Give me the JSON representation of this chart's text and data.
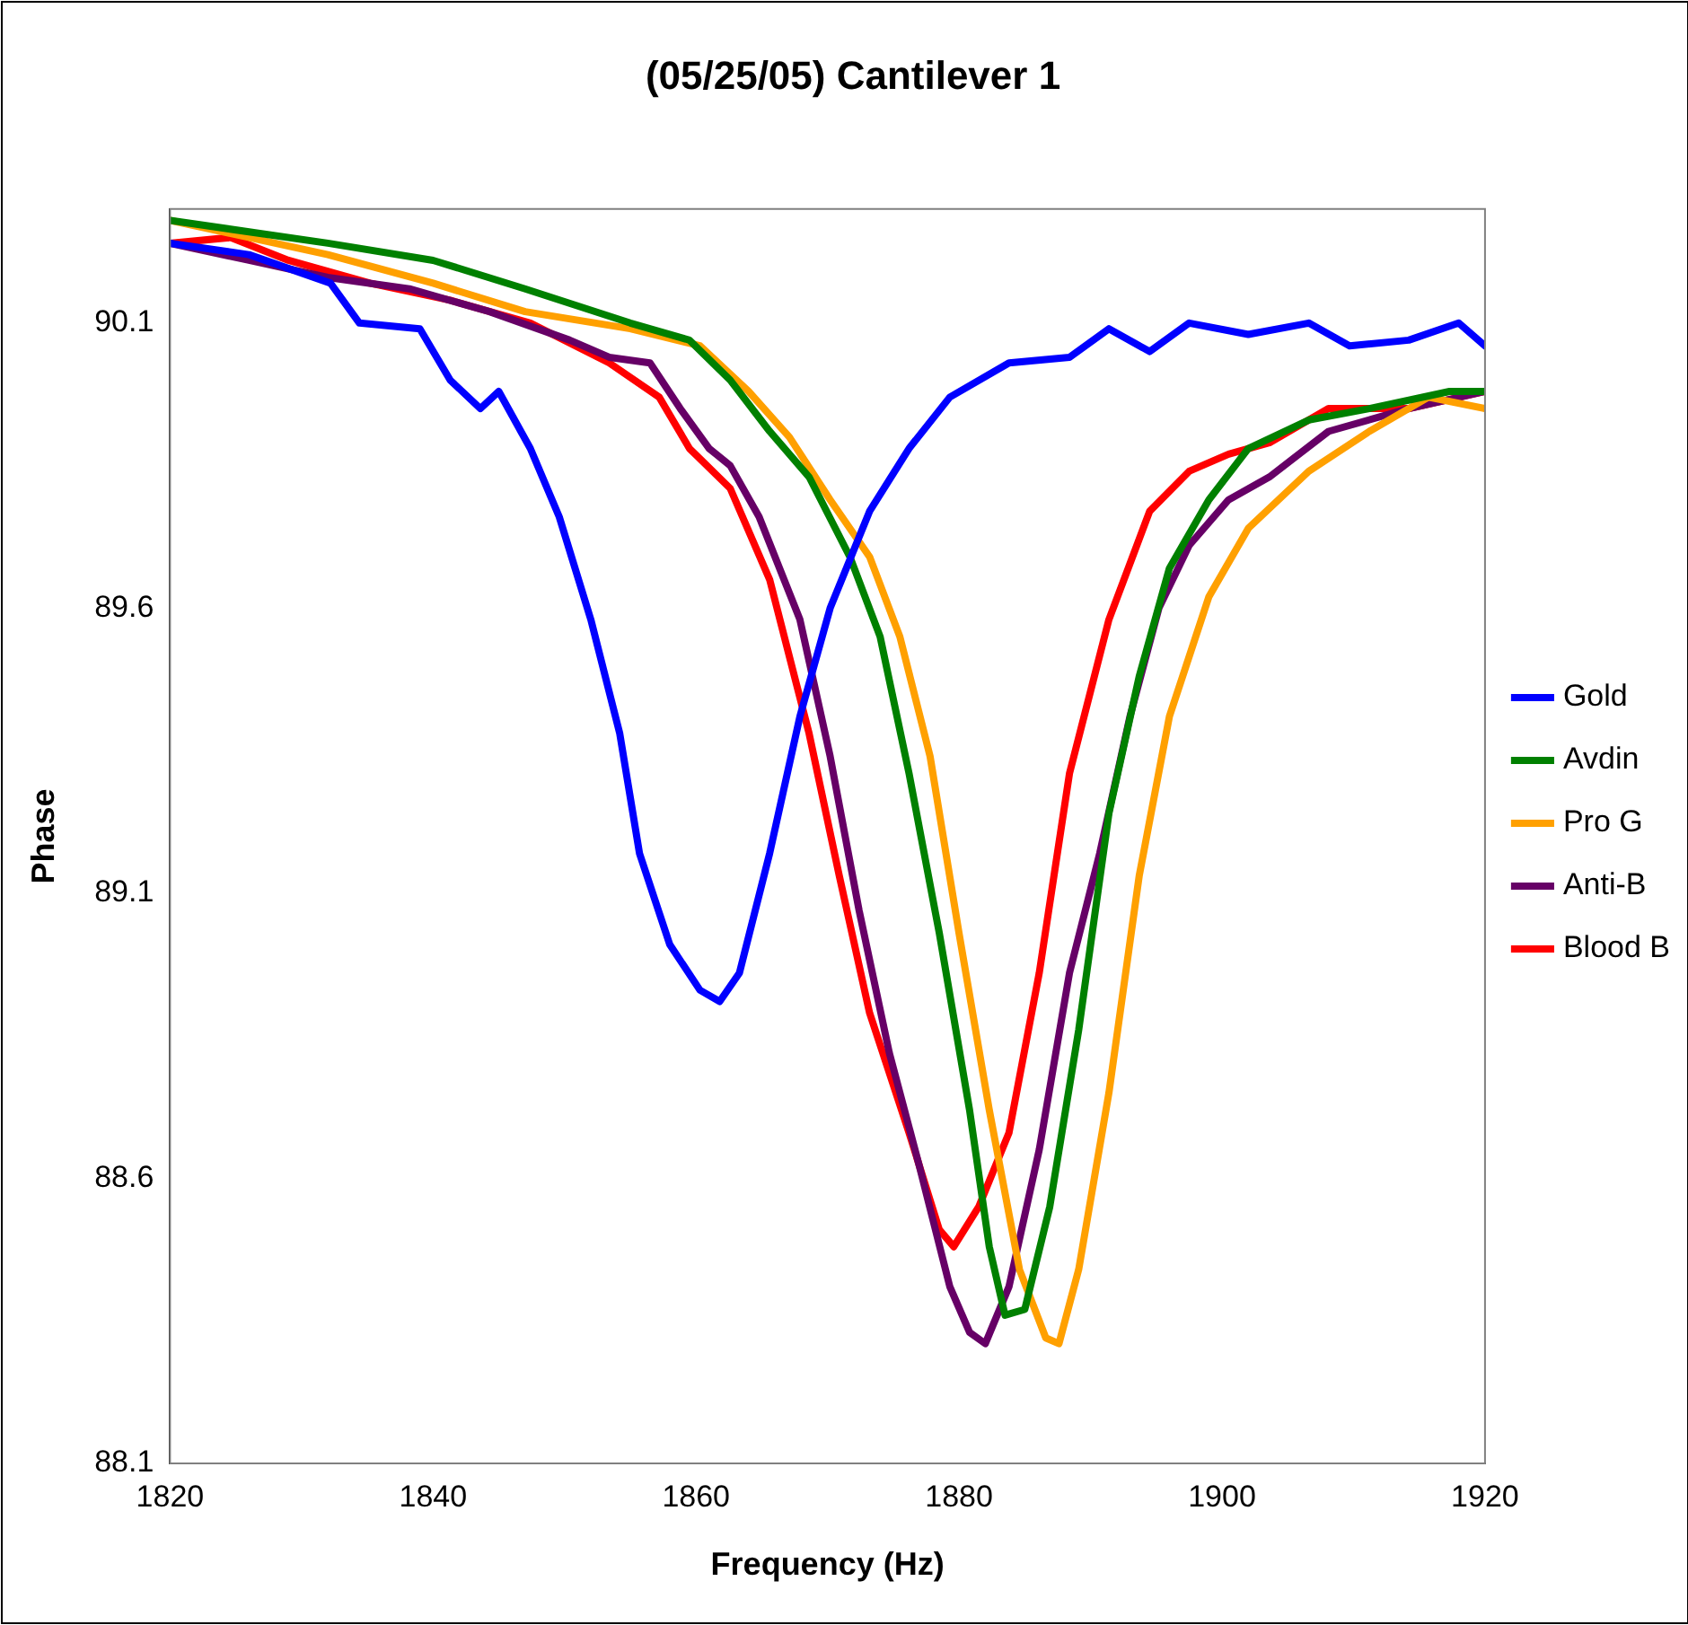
{
  "chart_data": {
    "type": "line",
    "title": "(05/25/05) Cantilever 1",
    "xlabel": "Frequency (Hz)",
    "ylabel": "Phase",
    "xlim": [
      1820,
      1920
    ],
    "xticks": [
      1820,
      1840,
      1860,
      1880,
      1900,
      1920
    ],
    "ylim": [
      88.1,
      90.3
    ],
    "yticks": [
      88.1,
      88.6,
      89.1,
      89.6,
      90.1
    ],
    "grid": false,
    "legend": "right",
    "marker": "none",
    "line_style": "solid",
    "series": [
      {
        "name": "Gold",
        "color": "#0000ff",
        "x": [
          1820,
          1826,
          1832.2,
          1834.4,
          1839,
          1841.3,
          1843.6,
          1845,
          1847.4,
          1849.6,
          1852,
          1854.2,
          1855.7,
          1858,
          1860.3,
          1861.8,
          1863.3,
          1865.6,
          1867.9,
          1870.2,
          1873.2,
          1876.2,
          1879.3,
          1883.8,
          1888.4,
          1891.4,
          1894.5,
          1897.5,
          1902,
          1906.6,
          1909.7,
          1914.2,
          1918,
          1920
        ],
        "values": [
          90.24,
          90.22,
          90.17,
          90.1,
          90.09,
          90,
          89.95,
          89.98,
          89.88,
          89.76,
          89.58,
          89.38,
          89.17,
          89.01,
          88.93,
          88.91,
          88.96,
          89.17,
          89.41,
          89.6,
          89.77,
          89.88,
          89.97,
          90.03,
          90.04,
          90.09,
          90.05,
          90.1,
          90.08,
          90.1,
          90.06,
          90.07,
          90.1,
          90.06
        ]
      },
      {
        "name": "Avdin",
        "color": "#008000",
        "x": [
          1820,
          1832,
          1840,
          1847,
          1855,
          1859.5,
          1862.6,
          1865.6,
          1868.6,
          1871.7,
          1874,
          1876.2,
          1878.5,
          1880.8,
          1882.3,
          1883.5,
          1885,
          1886.9,
          1889.1,
          1891.4,
          1893.7,
          1896,
          1899,
          1902,
          1906.6,
          1911.2,
          1917.3,
          1920
        ],
        "values": [
          90.28,
          90.24,
          90.21,
          90.16,
          90.1,
          90.07,
          90,
          89.91,
          89.83,
          89.69,
          89.55,
          89.31,
          89.03,
          88.72,
          88.48,
          88.36,
          88.37,
          88.55,
          88.86,
          89.24,
          89.48,
          89.67,
          89.79,
          89.88,
          89.93,
          89.95,
          89.98,
          89.98
        ]
      },
      {
        "name": "Pro G",
        "color": "#ffa000",
        "x": [
          1820,
          1832,
          1840,
          1847,
          1855,
          1860.3,
          1864,
          1867.1,
          1870.2,
          1873.2,
          1875.5,
          1877.8,
          1880,
          1882.3,
          1884.6,
          1886.6,
          1887.6,
          1889.1,
          1891.4,
          1893.7,
          1896,
          1899,
          1902,
          1906.6,
          1911.2,
          1915.7,
          1920
        ],
        "values": [
          90.28,
          90.22,
          90.17,
          90.12,
          90.09,
          90.06,
          89.98,
          89.9,
          89.79,
          89.69,
          89.55,
          89.34,
          89.03,
          88.72,
          88.44,
          88.32,
          88.31,
          88.44,
          88.75,
          89.13,
          89.41,
          89.62,
          89.74,
          89.84,
          89.91,
          89.97,
          89.95
        ]
      },
      {
        "name": "Anti-B",
        "color": "#660066",
        "x": [
          1820,
          1826,
          1832,
          1838.2,
          1844.3,
          1850.4,
          1853.4,
          1856.5,
          1858.8,
          1861,
          1862.6,
          1864.8,
          1867.9,
          1870.2,
          1872.4,
          1874.7,
          1877,
          1879.3,
          1880.8,
          1882,
          1883.8,
          1886.1,
          1888.4,
          1890.7,
          1893,
          1895.2,
          1897.5,
          1900.5,
          1903.6,
          1908.1,
          1914.2,
          1920
        ],
        "values": [
          90.24,
          90.21,
          90.18,
          90.16,
          90.12,
          90.07,
          90.04,
          90.03,
          89.95,
          89.88,
          89.85,
          89.76,
          89.58,
          89.34,
          89.07,
          88.82,
          88.62,
          88.41,
          88.33,
          88.31,
          88.41,
          88.65,
          88.96,
          89.17,
          89.41,
          89.6,
          89.71,
          89.79,
          89.83,
          89.91,
          89.95,
          89.98
        ]
      },
      {
        "name": "Blood B",
        "color": "#ff0000",
        "x": [
          1820,
          1824.6,
          1829,
          1835.2,
          1841.3,
          1847.4,
          1853.4,
          1857.2,
          1859.5,
          1862.6,
          1865.6,
          1868.6,
          1870.9,
          1873.2,
          1876.2,
          1878.5,
          1879.6,
          1881.5,
          1883.8,
          1886.1,
          1888.4,
          1891.4,
          1894.5,
          1897.5,
          1900.5,
          1903.6,
          1908.1,
          1914.2,
          1920
        ],
        "values": [
          90.24,
          90.25,
          90.21,
          90.17,
          90.14,
          90.1,
          90.03,
          89.97,
          89.88,
          89.81,
          89.65,
          89.38,
          89.13,
          88.89,
          88.68,
          88.51,
          88.48,
          88.55,
          88.68,
          88.96,
          89.31,
          89.58,
          89.77,
          89.84,
          89.87,
          89.89,
          89.95,
          89.95,
          89.98
        ]
      }
    ]
  }
}
